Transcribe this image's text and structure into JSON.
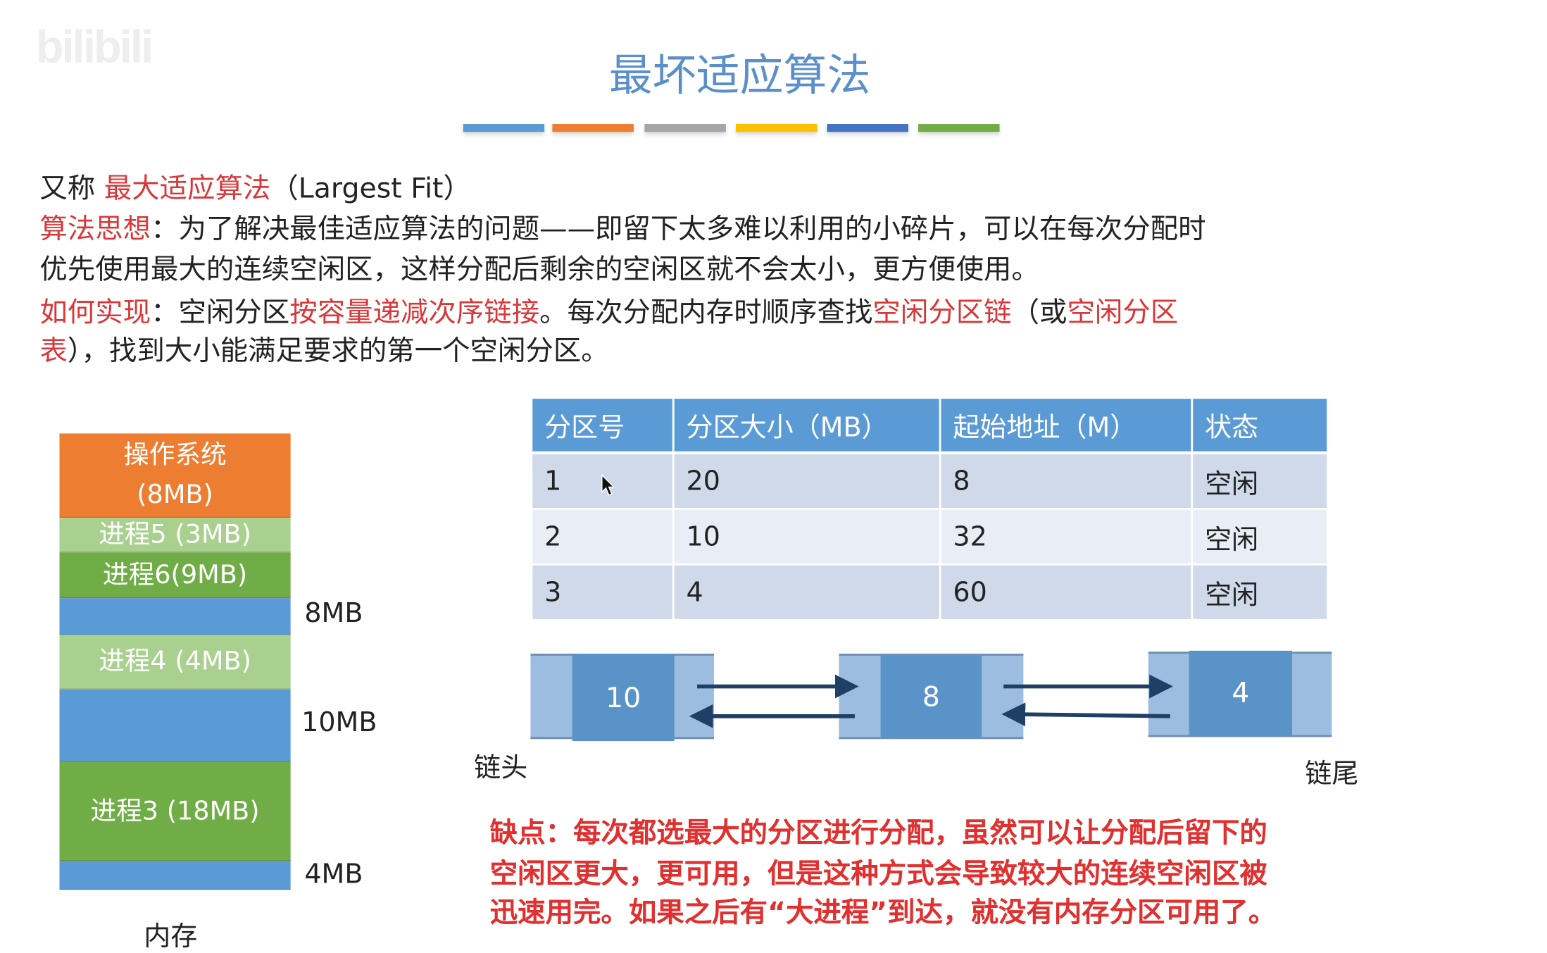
{
  "watermark": "bilibili",
  "title": "最坏适应算法",
  "divider_colors": [
    "#5b9bd5",
    "#ed7d31",
    "#a5a5a5",
    "#ffc000",
    "#4472c4",
    "#70ad47"
  ],
  "intro": {
    "aka_prefix": "又称 ",
    "aka_name": "最大适应算法",
    "aka_suffix": "（Largest Fit）",
    "idea_label": "算法思想",
    "idea_text_1": "：为了解决最佳适应算法的问题——即留下太多难以利用的小碎片，可以在每次分配时",
    "idea_text_2": "优先使用最大的连续空闲区，这样分配后剩余的空闲区就不会太小，更方便使用。",
    "impl_label": "如何实现",
    "impl_text_1": "：空闲分区",
    "impl_red_1": "按容量递减次序链接",
    "impl_text_2": "。每次分配内存时顺序查找",
    "impl_red_2": "空闲分区链",
    "impl_text_3": "（或",
    "impl_red_3": "空闲分区",
    "impl_red_4": "表",
    "impl_text_4": "），找到大小能满足要求的第一个空闲分区。"
  },
  "memory": {
    "caption": "内存",
    "blocks": [
      {
        "label": "操作系统\n(8MB)",
        "color": "#ed7d31"
      },
      {
        "label": "进程5 (3MB)",
        "color": "#a9d08e"
      },
      {
        "label": "进程6(9MB)",
        "color": "#70ad47"
      },
      {
        "label": "",
        "color": "#5b9bd5",
        "side": "8MB"
      },
      {
        "label": "进程4 (4MB)",
        "color": "#a9d08e"
      },
      {
        "label": "",
        "color": "#5b9bd5",
        "side": "10MB"
      },
      {
        "label": "进程3 (18MB)",
        "color": "#70ad47"
      },
      {
        "label": "",
        "color": "#5b9bd5",
        "side": "4MB"
      }
    ]
  },
  "table": {
    "headers": [
      "分区号",
      "分区大小（MB）",
      "起始地址（M）",
      "状态"
    ],
    "rows": [
      [
        "1",
        "20",
        "8",
        "空闲"
      ],
      [
        "2",
        "10",
        "32",
        "空闲"
      ],
      [
        "3",
        "4",
        "60",
        "空闲"
      ]
    ]
  },
  "chain": {
    "nodes": [
      "10",
      "8",
      "4"
    ],
    "head_label": "链头",
    "tail_label": "链尾"
  },
  "cons": {
    "line1": "缺点：每次都选最大的分区进行分配，虽然可以让分配后留下的",
    "line2": "空闲区更大，更可用，但是这种方式会导致较大的连续空闲区被",
    "line3": "迅速用完。如果之后有“大进程”到达，就没有内存分区可用了。"
  }
}
